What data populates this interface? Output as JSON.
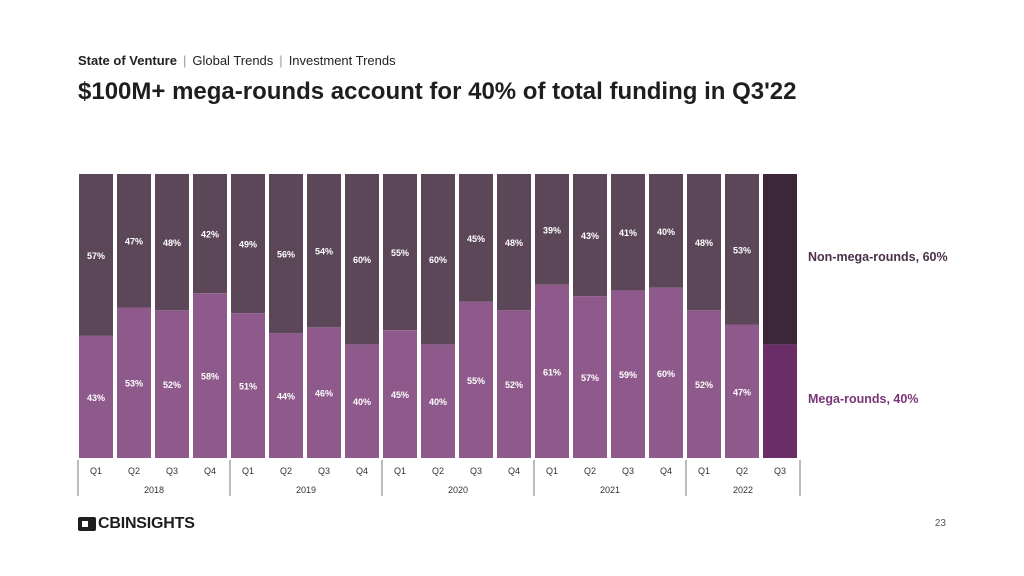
{
  "header": {
    "crumb1": "State of Venture",
    "crumb2": "Global Trends",
    "crumb3": "Investment Trends",
    "title": "$100M+ mega-rounds account for 40% of total funding in Q3'22"
  },
  "legend": {
    "non_mega": "Non-mega-rounds, 60%",
    "mega": "Mega-rounds, 40%"
  },
  "colors": {
    "non_mega": "#5b4758",
    "mega": "#8e5a8c",
    "non_mega_highlight": "#3c2638",
    "mega_highlight": "#6a2d68",
    "label_text": "#ffffff",
    "non_mega_legend": "#4a3148",
    "mega_legend": "#7a3679"
  },
  "footer": {
    "brand": "CBINSIGHTS",
    "page_number": "23"
  },
  "chart_data": {
    "type": "bar",
    "stacked": true,
    "percent_stacked": true,
    "title": "$100M+ mega-rounds account for 40% of total funding in Q3'22",
    "categories": [
      "Q1",
      "Q2",
      "Q3",
      "Q4",
      "Q1",
      "Q2",
      "Q3",
      "Q4",
      "Q1",
      "Q2",
      "Q3",
      "Q4",
      "Q1",
      "Q2",
      "Q3",
      "Q4",
      "Q1",
      "Q2",
      "Q3"
    ],
    "year_groups": [
      {
        "year": "2018",
        "count": 4
      },
      {
        "year": "2019",
        "count": 4
      },
      {
        "year": "2020",
        "count": 4
      },
      {
        "year": "2021",
        "count": 4
      },
      {
        "year": "2022",
        "count": 3
      }
    ],
    "series": [
      {
        "name": "Mega-rounds",
        "values": [
          43,
          53,
          52,
          58,
          51,
          44,
          46,
          40,
          45,
          40,
          55,
          52,
          61,
          57,
          59,
          60,
          52,
          47,
          40
        ]
      },
      {
        "name": "Non-mega-rounds",
        "values": [
          57,
          47,
          48,
          42,
          49,
          56,
          54,
          60,
          55,
          60,
          45,
          48,
          39,
          43,
          41,
          40,
          48,
          53,
          60
        ]
      }
    ],
    "highlight_index": 18,
    "ylim": [
      0,
      100
    ],
    "value_suffix": "%",
    "legend_position": "right"
  }
}
